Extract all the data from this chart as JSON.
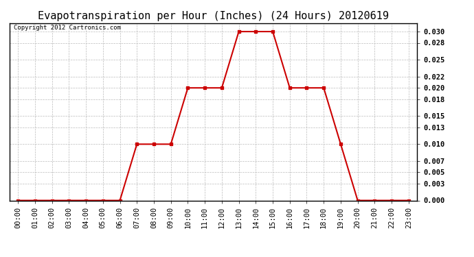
{
  "title": "Evapotranspiration per Hour (Inches) (24 Hours) 20120619",
  "copyright": "Copyright 2012 Cartronics.com",
  "hours": [
    0,
    1,
    2,
    3,
    4,
    5,
    6,
    7,
    8,
    9,
    10,
    11,
    12,
    13,
    14,
    15,
    16,
    17,
    18,
    19,
    20,
    21,
    22,
    23
  ],
  "values": [
    0.0,
    0.0,
    0.0,
    0.0,
    0.0,
    0.0,
    0.0,
    0.01,
    0.01,
    0.01,
    0.02,
    0.02,
    0.02,
    0.03,
    0.03,
    0.03,
    0.02,
    0.02,
    0.02,
    0.01,
    0.0,
    0.0,
    0.0,
    0.0
  ],
  "line_color": "#cc0000",
  "marker": "s",
  "marker_size": 2.5,
  "ylim": [
    0.0,
    0.0315
  ],
  "yticks": [
    0.0,
    0.003,
    0.005,
    0.007,
    0.01,
    0.013,
    0.015,
    0.018,
    0.02,
    0.022,
    0.025,
    0.028,
    0.03
  ],
  "background_color": "#ffffff",
  "plot_bg_color": "#ffffff",
  "grid_color": "#bbbbbb",
  "title_fontsize": 11,
  "tick_fontsize": 7.5,
  "copyright_fontsize": 6.5
}
